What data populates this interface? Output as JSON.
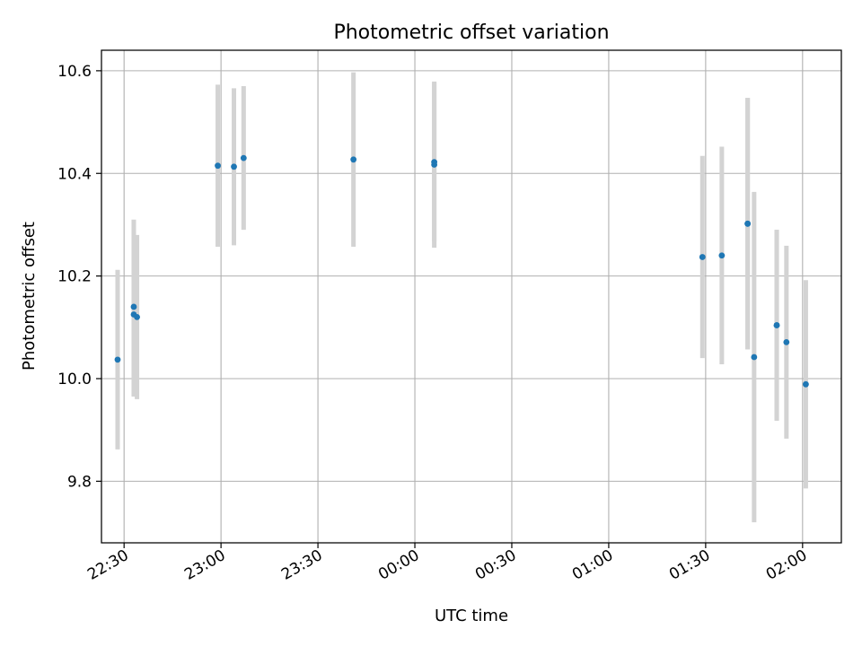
{
  "chart_data": {
    "type": "scatter",
    "title": "Photometric offset variation",
    "xlabel": "UTC time",
    "ylabel": "Photometric offset",
    "grid": true,
    "x_ticks": [
      "22:30",
      "23:00",
      "23:30",
      "00:00",
      "00:30",
      "01:00",
      "01:30",
      "02:00"
    ],
    "y_ticks": [
      "9.8",
      "10.0",
      "10.2",
      "10.4",
      "10.6"
    ],
    "y_tick_values": [
      9.8,
      10.0,
      10.2,
      10.4,
      10.6
    ],
    "xlim": [
      "22:23",
      "02:12"
    ],
    "ylim": [
      9.68,
      10.64
    ],
    "colors": {
      "point": "#1f77b4",
      "error_bar": "#d3d3d3",
      "grid": "#b0b0b0"
    },
    "points": [
      {
        "x": "22:28",
        "y": 10.037,
        "err": 0.175
      },
      {
        "x": "22:33",
        "y": 10.14,
        "err": 0.17
      },
      {
        "x": "22:33",
        "y": 10.125,
        "err": 0.16
      },
      {
        "x": "22:34",
        "y": 10.12,
        "err": 0.16
      },
      {
        "x": "22:59",
        "y": 10.415,
        "err": 0.158
      },
      {
        "x": "23:04",
        "y": 10.413,
        "err": 0.153
      },
      {
        "x": "23:07",
        "y": 10.43,
        "err": 0.14
      },
      {
        "x": "23:41",
        "y": 10.427,
        "err": 0.17
      },
      {
        "x": "00:06",
        "y": 10.417,
        "err": 0.162
      },
      {
        "x": "00:06",
        "y": 10.422,
        "err": 0.155
      },
      {
        "x": "01:29",
        "y": 10.237,
        "err": 0.197
      },
      {
        "x": "01:35",
        "y": 10.24,
        "err": 0.212
      },
      {
        "x": "01:43",
        "y": 10.302,
        "err": 0.245
      },
      {
        "x": "01:43",
        "y": 10.302,
        "err": 0.245
      },
      {
        "x": "01:45",
        "y": 10.042,
        "err": 0.322
      },
      {
        "x": "01:52",
        "y": 10.104,
        "err": 0.186
      },
      {
        "x": "01:52",
        "y": 10.104,
        "err": 0.186
      },
      {
        "x": "01:55",
        "y": 10.071,
        "err": 0.188
      },
      {
        "x": "02:01",
        "y": 9.989,
        "err": 0.203
      }
    ]
  }
}
